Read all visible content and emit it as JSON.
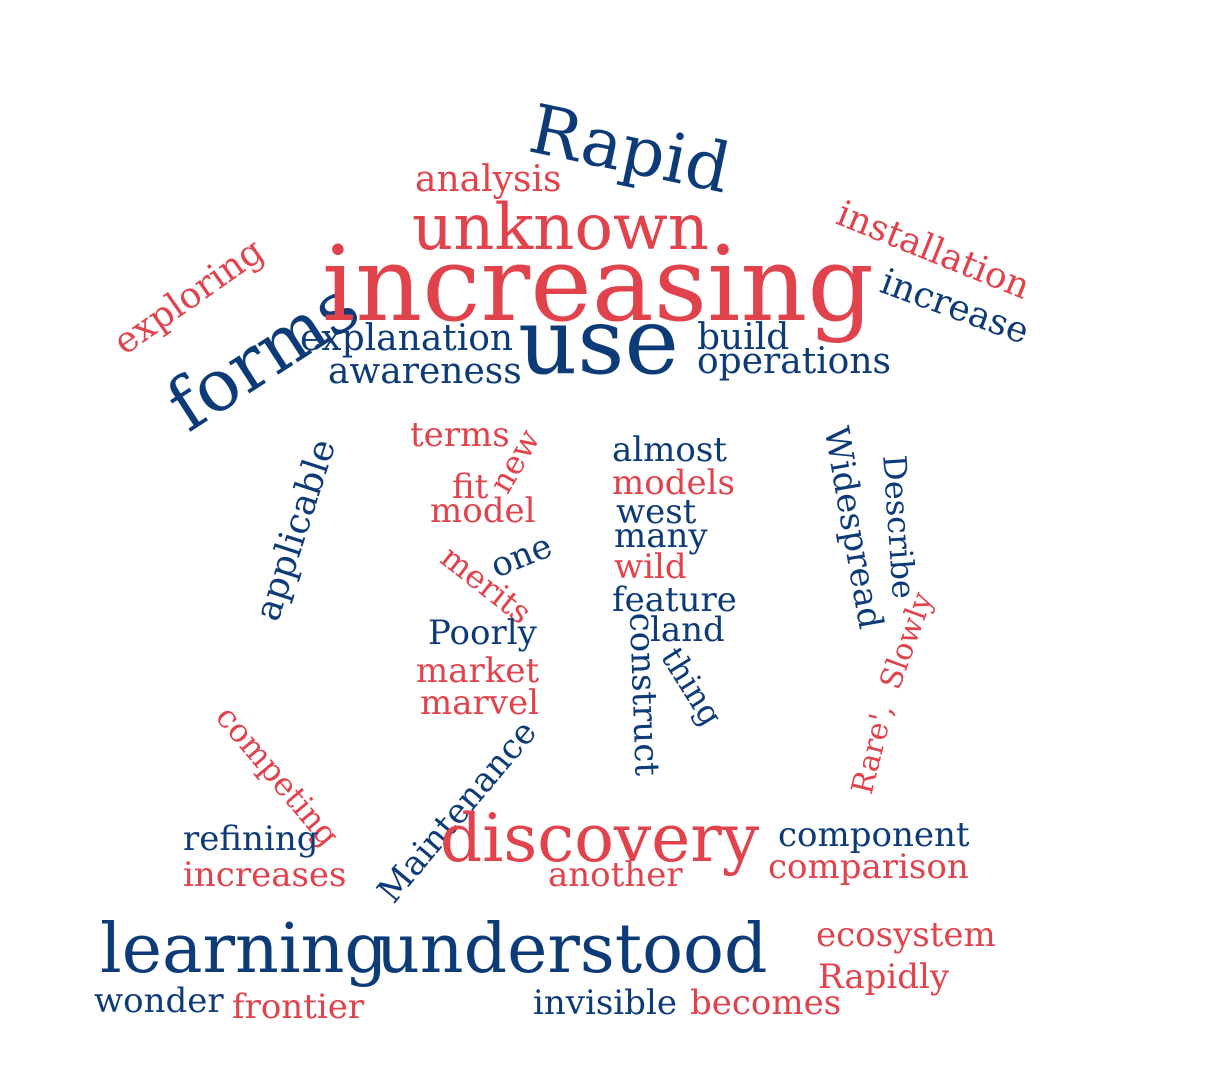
{
  "colors": {
    "red": "#e0434b",
    "blue": "#0d3b78",
    "background": "#ffffff"
  },
  "words": {
    "rapid": "Rapid",
    "analysis": "analysis",
    "unknown": "unknown",
    "installation": "installation",
    "exploring": "exploring",
    "forms": "forms",
    "increasing": "increasing",
    "increase": "increase",
    "explanation": "explanation",
    "use": "use",
    "build": "build",
    "awareness": "awareness",
    "operations": "operations",
    "terms": "terms",
    "new": "new",
    "fit": "fit",
    "model": "model",
    "one": "one",
    "merits": "merits",
    "poorly": "Poorly",
    "market": "market",
    "marvel": "marvel",
    "applicable": "applicable",
    "almost": "almost",
    "models": "models",
    "west": "west",
    "many": "many",
    "wild": "wild",
    "feature": "feature",
    "land": "land",
    "construct": "construct",
    "thing": "thing",
    "widespread": "Widespread",
    "describe": "Describe",
    "slowly": "Slowly",
    "rare": "Rare',",
    "competing": "competing",
    "maintenance": "Maintenance",
    "refining": "refining",
    "increases": "increases",
    "discovery": "discovery",
    "another": "another",
    "component": "component",
    "comparison": "comparison",
    "learning": "learning",
    "understood": "understood",
    "ecosystem": "ecosystem",
    "rapidly": "Rapidly",
    "wonder": "wonder",
    "frontier": "frontier",
    "invisible": "invisible",
    "becomes": "becomes"
  }
}
